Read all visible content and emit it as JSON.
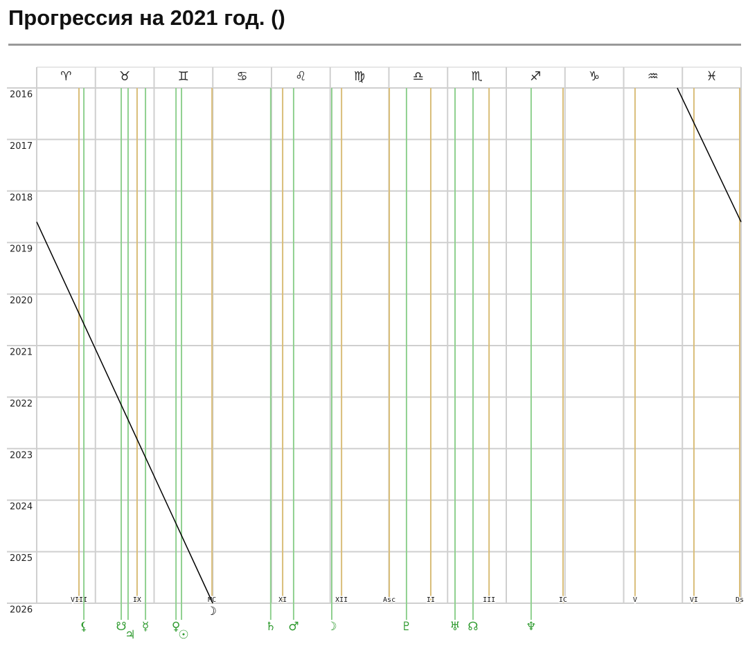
{
  "chart_data": {
    "type": "ephemeris",
    "title": "Прогрессия на 2021 год. ()",
    "categories": [
      "♈",
      "♉",
      "♊",
      "♋",
      "♌",
      "♍",
      "♎",
      "♏",
      "♐",
      "♑",
      "♒",
      "♓"
    ],
    "xlim": [
      0,
      360
    ],
    "ylim": [
      2016,
      2026
    ],
    "y_reversed": true,
    "yticks": [
      2016,
      2017,
      2018,
      2019,
      2020,
      2021,
      2022,
      2023,
      2024,
      2025,
      2026
    ],
    "grid": true,
    "planet_color": "#2e9a2e",
    "planet_line_color": "#8fd08f",
    "cusp_line_color": "#d9bd78",
    "moon_color": "#000000",
    "planets": [
      {
        "label": "⚸",
        "x": 24.1
      },
      {
        "label": "☋",
        "x": 43.2
      },
      {
        "label": "♃",
        "x": 46.7
      },
      {
        "label": "☿",
        "x": 55.6
      },
      {
        "label": "♀",
        "x": 71.2
      },
      {
        "label": "☉",
        "x": 74.0
      },
      {
        "label": "♄",
        "x": 119.6
      },
      {
        "label": "♂",
        "x": 131.3
      },
      {
        "label": "☽",
        "x": 150.8
      },
      {
        "label": "♇",
        "x": 189.0
      },
      {
        "label": "♅",
        "x": 213.8
      },
      {
        "label": "☊",
        "x": 223.0
      },
      {
        "label": "♆",
        "x": 252.7
      }
    ],
    "cusps": [
      {
        "label": "VIII",
        "x": 21.6
      },
      {
        "label": "IX",
        "x": 51.3
      },
      {
        "label": "MC",
        "x": 89.6
      },
      {
        "label": "XI",
        "x": 125.7
      },
      {
        "label": "XII",
        "x": 155.8
      },
      {
        "label": "Asc",
        "x": 180.2
      },
      {
        "label": "II",
        "x": 201.4
      },
      {
        "label": "III",
        "x": 231.2
      },
      {
        "label": "IC",
        "x": 269.0
      },
      {
        "label": "V",
        "x": 305.8
      },
      {
        "label": "VI",
        "x": 335.9
      },
      {
        "label": "Ds",
        "x": 359.3
      }
    ],
    "progressed_moon": {
      "label": "☽",
      "x": [
        327.4,
        360,
        null,
        0,
        90
      ],
      "y": [
        2016,
        2018.6,
        null,
        2018.6,
        2026
      ]
    }
  }
}
